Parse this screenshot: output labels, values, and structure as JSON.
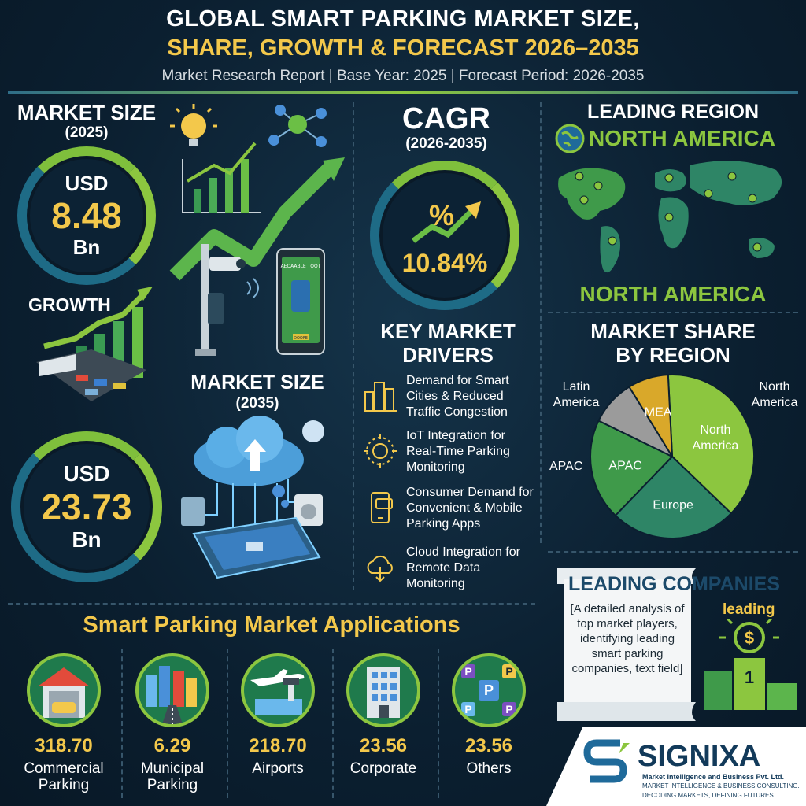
{
  "header": {
    "title_line1": "GLOBAL SMART PARKING MARKET SIZE,",
    "title_line2": "SHARE, GROWTH & FORECAST 2026–2035",
    "subtitle": "Market Research Report | Base Year: 2025 | Forecast Period: 2026-2035"
  },
  "market_size_2025": {
    "heading": "MARKET SIZE",
    "year": "(2025)",
    "currency": "USD",
    "value": "8.48",
    "unit": "Bn"
  },
  "growth_label": "GROWTH",
  "phone_screen": {
    "top_text": "AEOAABLE TOOT",
    "bottom_text": "DOOFE"
  },
  "market_size_2035": {
    "heading": "MARKET SIZE",
    "year": "(2035)",
    "currency": "USD",
    "value": "23.73",
    "unit": "Bn"
  },
  "cagr": {
    "heading": "CAGR",
    "period": "(2026-2035)",
    "symbol": "%",
    "value": "10.84%"
  },
  "drivers": {
    "heading_line1": "KEY MARKET",
    "heading_line2": "DRIVERS",
    "items": [
      {
        "icon": "city-buildings-icon",
        "text": "Demand for Smart Cities & Reduced Traffic Congestion"
      },
      {
        "icon": "iot-chip-icon",
        "text": "IoT Integration for Real-Time Parking Monitoring"
      },
      {
        "icon": "mobile-phone-icon",
        "text": "Consumer Demand for Convenient & Mobile Parking Apps"
      },
      {
        "icon": "cloud-icon",
        "text": "Cloud Integration for Remote Data Monitoring"
      }
    ]
  },
  "region": {
    "heading": "LEADING REGION",
    "name_top": "NORTH AMERICA",
    "name_bottom": "NORTH AMERICA"
  },
  "share": {
    "heading_line1": "MARKET SHARE",
    "heading_line2": "BY REGION",
    "outer_labels": {
      "latin": "Latin America",
      "north": "North America",
      "apac": "APAC"
    }
  },
  "chart_data": {
    "type": "pie",
    "slices": [
      {
        "name": "North America",
        "value": 38,
        "color": "#8cc63f"
      },
      {
        "name": "Europe",
        "value": 25,
        "color": "#2e8566"
      },
      {
        "name": "APAC",
        "value": 20,
        "color": "#3f9a4a"
      },
      {
        "name": "Latin America",
        "value": 9,
        "color": "#9b9b9b"
      },
      {
        "name": "MEA",
        "value": 8,
        "color": "#d9a82a"
      }
    ]
  },
  "companies": {
    "heading": "LEADING COMPANIES",
    "badge": "leading",
    "placeholder": "[A detailed analysis of top market players, identifying leading smart parking companies, text field]",
    "podium_first": "1"
  },
  "applications": {
    "heading": "Smart Parking Market Applications",
    "items": [
      {
        "value": "318.70",
        "label": "Commercial Parking",
        "icon": "garage-icon"
      },
      {
        "value": "6.29",
        "label": "Municipal Parking",
        "icon": "city-road-icon"
      },
      {
        "value": "218.70",
        "label": "Airports",
        "icon": "airplane-icon"
      },
      {
        "value": "23.56",
        "label": "Corporate",
        "icon": "office-building-icon"
      },
      {
        "value": "23.56",
        "label": "Others",
        "icon": "parking-signs-icon"
      }
    ]
  },
  "brand": {
    "name": "SIGNIXA",
    "line1": "Market Intelligence and Business Pvt. Ltd.",
    "line2": "MARKET INTELLIGENCE & BUSINESS CONSULTING.",
    "line3": "DECODING MARKETS, DEFINING FUTURES"
  }
}
